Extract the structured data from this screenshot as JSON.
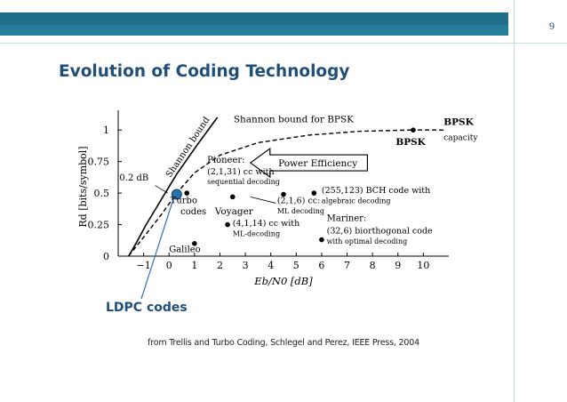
{
  "slide": {
    "page_number": "9",
    "title": "Evolution of Coding Technology",
    "caption": "from Trellis and Turbo Coding, Schlegel and Perez, IEEE Press, 2004",
    "callout_label": "LDPC codes"
  },
  "colors": {
    "accent": "#1f6f8b",
    "title": "#1f4e79",
    "ldpc_dot": "#2a6fb0"
  },
  "chart_data": {
    "type": "scatter",
    "xlabel": "Eb/N0 [dB]",
    "ylabel": "Rd [bits/symbol]",
    "xlim": [
      -2,
      11
    ],
    "ylim": [
      0,
      1.1
    ],
    "x_ticks": [
      -1,
      0,
      1,
      2,
      3,
      4,
      5,
      6,
      7,
      8,
      9,
      10
    ],
    "y_ticks": [
      {
        "v": 0,
        "label": "0"
      },
      {
        "v": 0.25,
        "label": "0.25"
      },
      {
        "v": 0.5,
        "label": "0.5"
      },
      {
        "v": 0.75,
        "label": "0.75"
      },
      {
        "v": 1,
        "label": "1"
      }
    ],
    "curves": [
      {
        "name": "Shannon bound",
        "style": "solid",
        "points": [
          [
            -1.59,
            0
          ],
          [
            -1.3,
            0.1
          ],
          [
            -0.9,
            0.25
          ],
          [
            -0.3,
            0.45
          ],
          [
            0.3,
            0.65
          ],
          [
            1.1,
            0.88
          ],
          [
            1.9,
            1.1
          ]
        ]
      },
      {
        "name": "Shannon bound for BPSK",
        "style": "dashed",
        "points": [
          [
            -1.59,
            0
          ],
          [
            -1.0,
            0.15
          ],
          [
            -0.3,
            0.33
          ],
          [
            0.3,
            0.5
          ],
          [
            1.0,
            0.66
          ],
          [
            2.0,
            0.8
          ],
          [
            3.5,
            0.9
          ],
          [
            5.5,
            0.96
          ],
          [
            7.5,
            0.99
          ],
          [
            9.5,
            1.0
          ]
        ]
      }
    ],
    "points": [
      {
        "x": 9.6,
        "y": 1.0,
        "label": "BPSK"
      },
      {
        "x": 0.35,
        "y": 0.5,
        "label": "Turbo codes"
      },
      {
        "x": 0.7,
        "y": 0.5,
        "label": ""
      },
      {
        "x": 2.5,
        "y": 0.47,
        "label": "Voyager"
      },
      {
        "x": 4.5,
        "y": 0.49,
        "label": "(2,1,6) cc: ML decoding"
      },
      {
        "x": 5.7,
        "y": 0.5,
        "label": "(255,123) BCH code with algebraic decoding"
      },
      {
        "x": 1.0,
        "y": 0.1,
        "label": "Galileo"
      },
      {
        "x": 2.3,
        "y": 0.25,
        "label": "(4,1,14) cc with ML-decoding"
      },
      {
        "x": 6.0,
        "y": 0.13,
        "label": "Mariner: (32,6) biorthogonal code with optimal decoding"
      }
    ],
    "ldpc_point": {
      "x": 0.3,
      "y": 0.49
    },
    "annotations": {
      "shannon_bound": "Shannon bound",
      "shannon_bpsk": "Shannon bound for BPSK",
      "bpsk": "BPSK",
      "bpsk_capacity_1": "BPSK",
      "bpsk_capacity_2": "capacity",
      "power_efficiency": "Power Efficiency",
      "gap": "0.2 dB",
      "pioneer_1": "Pioneer:",
      "pioneer_2": "(2,1,31) cc with",
      "pioneer_3": "sequential decoding",
      "turbo_1": "Turbo",
      "turbo_2": "codes",
      "voyager": "Voyager",
      "cc216_1": "(2,1,6) cc:",
      "cc216_2": "ML decoding",
      "bch_1": "(255,123) BCH code with",
      "bch_2": "algebraic decoding",
      "cc4114_1": "(4,1,14) cc with",
      "cc4114_2": "ML-decoding",
      "galileo": "Galileo",
      "mariner_1": "Mariner:",
      "mariner_2": "(32,6) biorthogonal code",
      "mariner_3": "with optimal decoding"
    }
  }
}
